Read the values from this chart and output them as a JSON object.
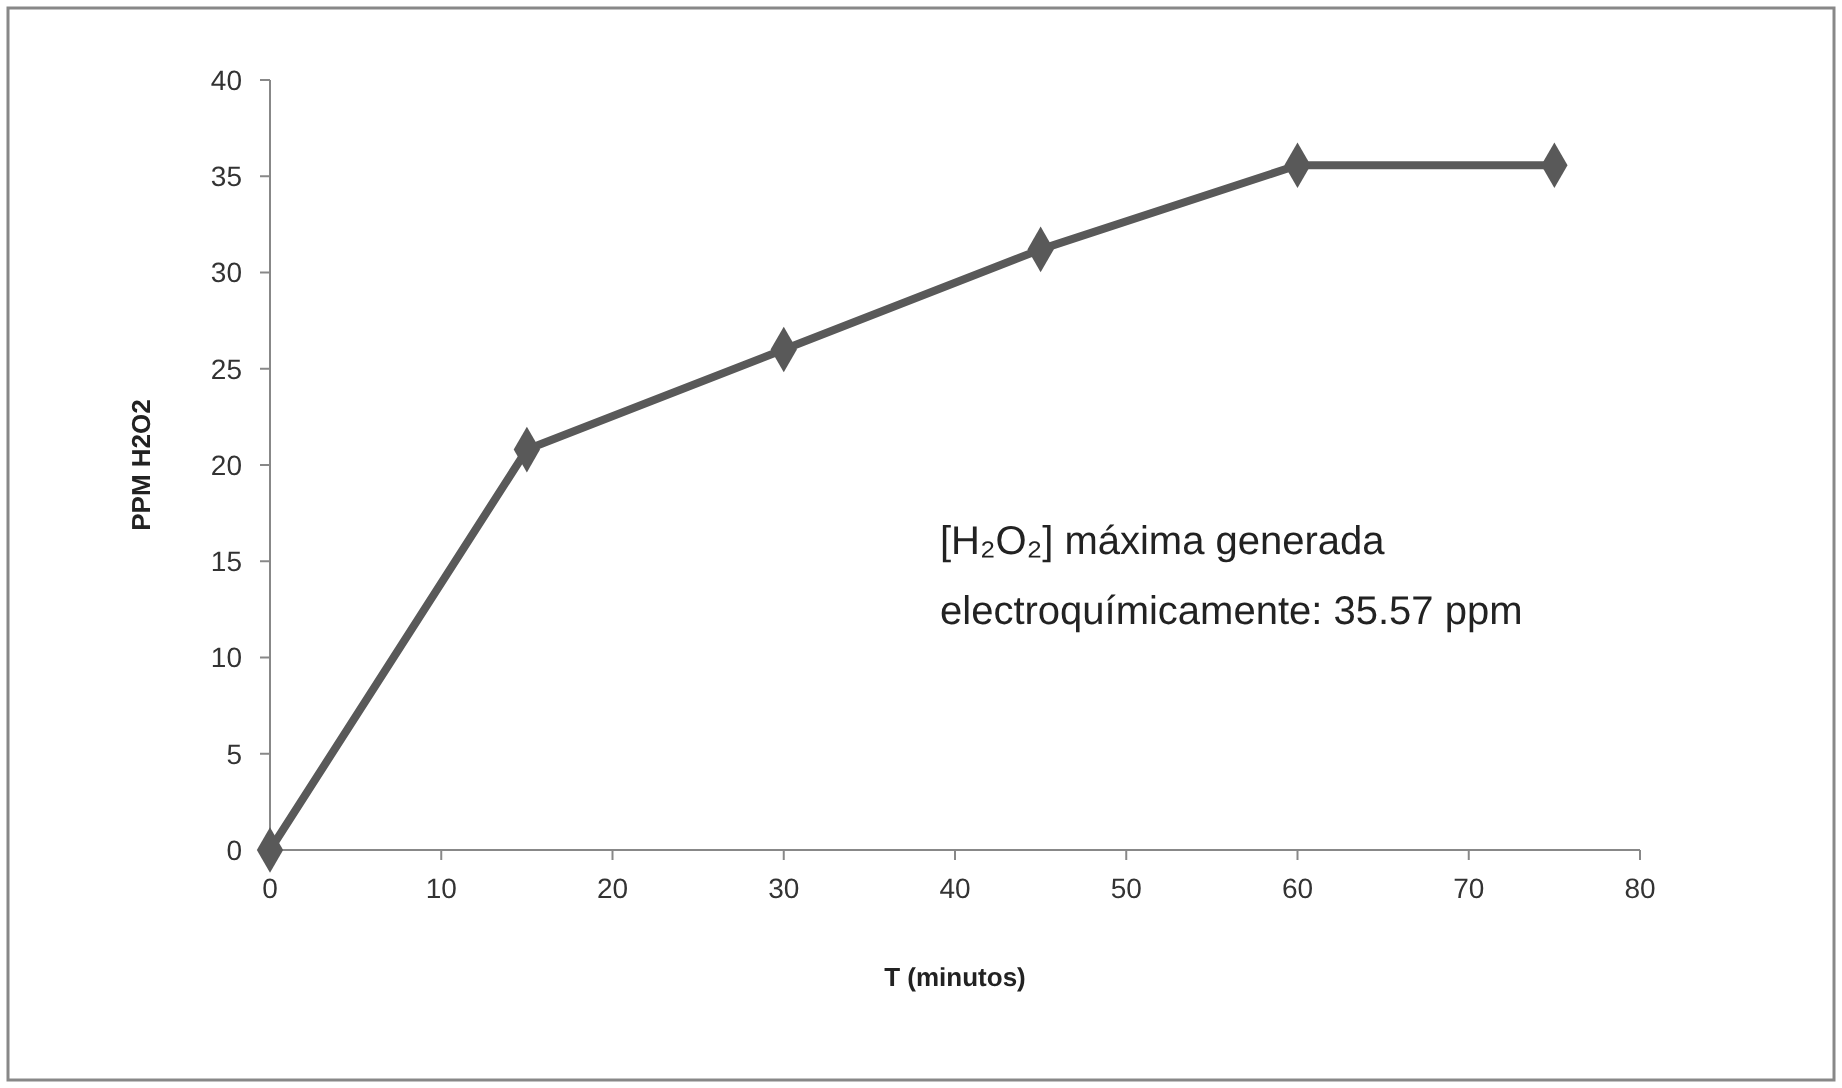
{
  "chart_data": {
    "type": "line",
    "xlabel": "T (minutos)",
    "ylabel": "PPM H2O2",
    "x": [
      0,
      15,
      30,
      45,
      60,
      75
    ],
    "series": [
      {
        "color": "#595959",
        "values": [
          0,
          20.8,
          26,
          31.2,
          35.57,
          35.57
        ]
      }
    ],
    "xlim": [
      0,
      80
    ],
    "xticks": [
      0,
      10,
      20,
      30,
      40,
      50,
      60,
      70,
      80
    ],
    "ylim": [
      0,
      40
    ],
    "yticks": [
      0,
      5,
      10,
      15,
      20,
      25,
      30,
      35,
      40
    ],
    "grid": false,
    "marker": "diamond",
    "line_style": "solid",
    "annotations": [
      "[H₂O₂] máxima  generada electroquímicamente: 35.57 ppm"
    ]
  }
}
